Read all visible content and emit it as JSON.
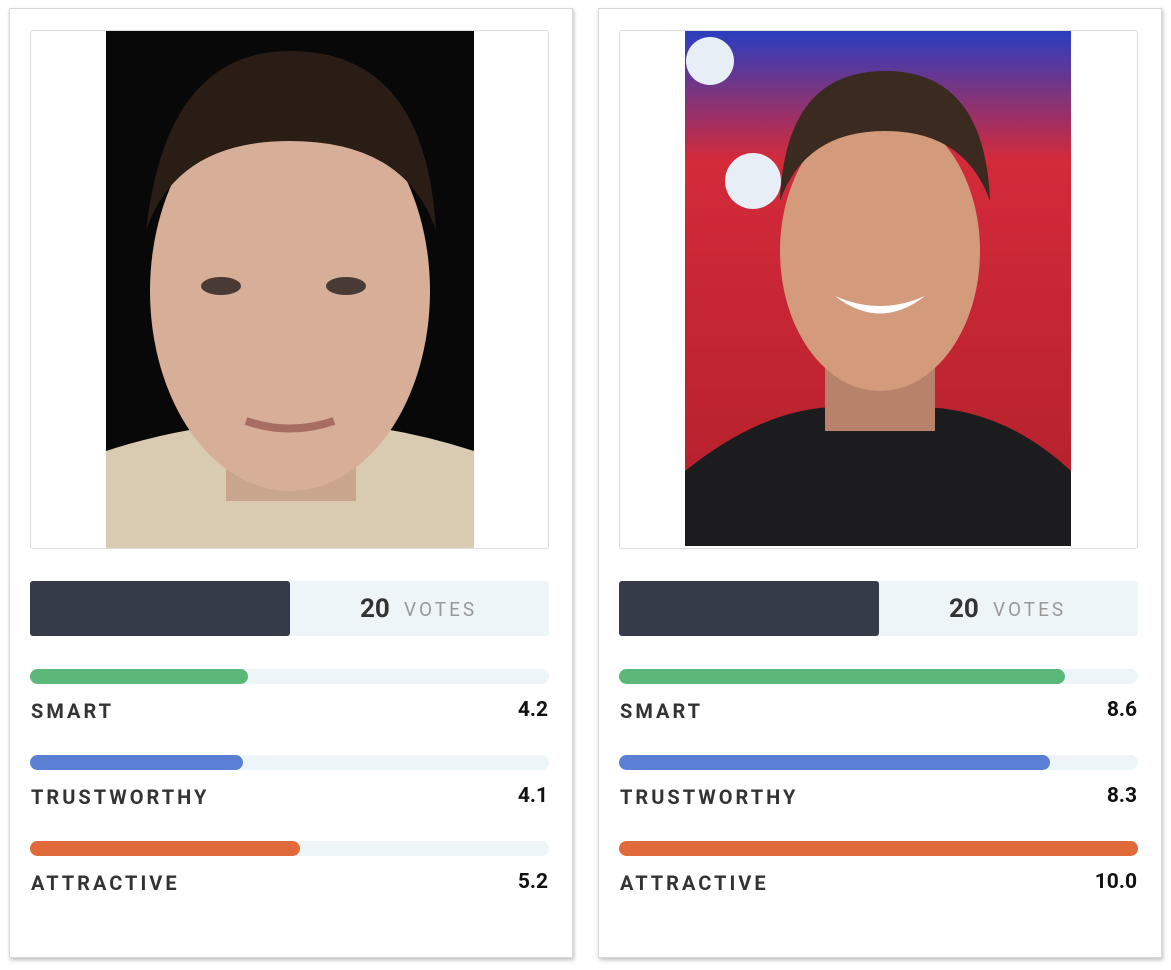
{
  "cards": [
    {
      "votes": 20,
      "votes_label": "VOTES",
      "metrics": {
        "xlim": [
          0,
          10
        ],
        "categories": [
          "SMART",
          "TRUSTWORTHY",
          "ATTRACTIVE"
        ],
        "values": [
          4.2,
          4.1,
          5.2
        ],
        "value_labels": [
          "4.2",
          "4.1",
          "5.2"
        ],
        "colors": [
          "#5cb878",
          "#5b7fd4",
          "#e06a3a"
        ]
      }
    },
    {
      "votes": 20,
      "votes_label": "VOTES",
      "metrics": {
        "xlim": [
          0,
          10
        ],
        "categories": [
          "SMART",
          "TRUSTWORTHY",
          "ATTRACTIVE"
        ],
        "values": [
          8.6,
          8.3,
          10
        ],
        "value_labels": [
          "8.6",
          "8.3",
          "10.0"
        ],
        "colors": [
          "#5cb878",
          "#5b7fd4",
          "#e06a3a"
        ]
      }
    }
  ]
}
